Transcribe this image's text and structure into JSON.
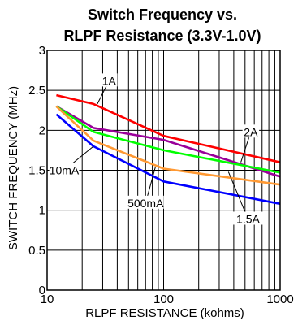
{
  "chart_data": {
    "type": "line",
    "title_line1": "Switch Frequency vs.",
    "title_line2": "RLPF Resistance (3.3V-1.0V)",
    "xlabel": "RLPF RESISTANCE (kohms)",
    "ylabel": "SWITCH FREQUENCY (MHz)",
    "x_scale": "log",
    "xlim": [
      10,
      1000
    ],
    "ylim": [
      0,
      3
    ],
    "x_ticks": [
      {
        "value": 10,
        "label": "10"
      },
      {
        "value": 100,
        "label": "100"
      },
      {
        "value": 1000,
        "label": "1000"
      }
    ],
    "y_ticks": [
      {
        "value": 0,
        "label": "0"
      },
      {
        "value": 0.5,
        "label": "0.5"
      },
      {
        "value": 1,
        "label": "1"
      },
      {
        "value": 1.5,
        "label": "1.5"
      },
      {
        "value": 2,
        "label": "2"
      },
      {
        "value": 2.5,
        "label": "2.5"
      },
      {
        "value": 3,
        "label": "3"
      }
    ],
    "grid": true,
    "series": [
      {
        "name": "1A",
        "color": "#ff0000",
        "x": [
          12,
          25,
          100,
          1000
        ],
        "y": [
          2.44,
          2.33,
          1.93,
          1.6
        ]
      },
      {
        "name": "2A",
        "color": "#990099",
        "x": [
          12,
          25,
          100,
          1000
        ],
        "y": [
          2.3,
          2.03,
          1.88,
          1.42
        ]
      },
      {
        "name": "10mA",
        "color": "#00ff00",
        "x": [
          12,
          25,
          100,
          1000
        ],
        "y": [
          2.3,
          1.98,
          1.75,
          1.47
        ]
      },
      {
        "name": "500mA",
        "color": "#ff9933",
        "x": [
          12,
          25,
          100,
          1000
        ],
        "y": [
          2.3,
          1.87,
          1.52,
          1.32
        ]
      },
      {
        "name": "1.5A",
        "color": "#0000ff",
        "x": [
          12,
          25,
          100,
          1000
        ],
        "y": [
          2.2,
          1.8,
          1.36,
          1.08
        ]
      }
    ],
    "annotations": [
      {
        "text": "1A",
        "series": "1A",
        "at": [
          27,
          2.33
        ],
        "label_at": [
          34,
          2.62
        ]
      },
      {
        "text": "2A",
        "series": "2A",
        "at": [
          460,
          1.6
        ],
        "label_at": [
          560,
          1.98
        ]
      },
      {
        "text": "10mA",
        "series": "10mA",
        "at": [
          25,
          1.8
        ],
        "label_at": [
          14,
          1.5
        ]
      },
      {
        "text": "500mA",
        "series": "500mA",
        "at": [
          85,
          1.54
        ],
        "label_at": [
          70,
          1.09
        ]
      },
      {
        "text": "1.5A",
        "series": "1.5A",
        "at": [
          360,
          1.48
        ],
        "label_at": [
          530,
          0.89
        ]
      }
    ]
  }
}
